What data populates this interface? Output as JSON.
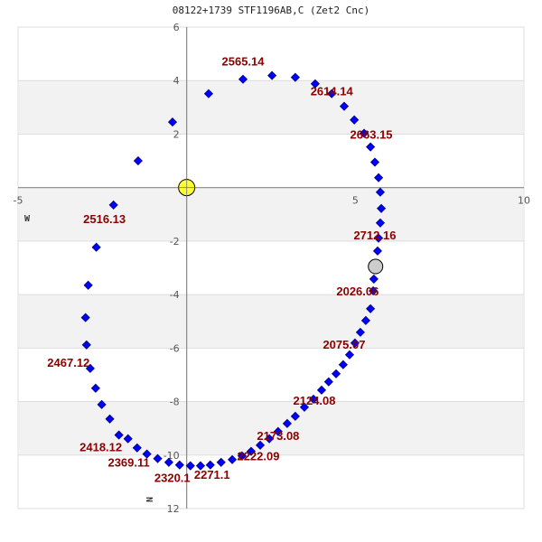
{
  "title": "08122+1739 STF1196AB,C (Zet2 Cnc)",
  "colors": {
    "point": "#0000ff",
    "point_stroke": "#000080",
    "label": "#8b0000",
    "primary_star": "#ffff33",
    "current_position": "#cccccc",
    "band": "#f2f2f2",
    "grid": "#dddddd",
    "axis": "#888888"
  },
  "direction_labels": {
    "west": "W",
    "north": "N"
  },
  "chart_data": {
    "type": "scatter",
    "title": "08122+1739 STF1196AB,C (Zet2 Cnc)",
    "xlabel": "",
    "ylabel": "",
    "xlim": [
      -5,
      10
    ],
    "ylim": [
      12,
      -6
    ],
    "x_ticks": [
      -5,
      5,
      10
    ],
    "y_ticks": [
      6,
      4,
      2,
      -2,
      -4,
      -6,
      -8,
      -10,
      12
    ],
    "y_tick_labels": [
      "6",
      "4",
      "2",
      "-2",
      "-4",
      "-6",
      "-8",
      "-10",
      "12"
    ],
    "grid": true,
    "legend": null,
    "primary": {
      "x": 0,
      "y": 0,
      "name": "primary-star"
    },
    "current_position": {
      "x": 5.6,
      "y": -2.95
    },
    "series": [
      {
        "name": "orbit",
        "points": [
          [
            -0.42,
            2.45
          ],
          [
            -1.44,
            1.0
          ],
          [
            -2.17,
            -0.65
          ],
          [
            -2.68,
            -2.23
          ],
          [
            -2.92,
            -3.65
          ],
          [
            -3.0,
            -4.86
          ],
          [
            -2.97,
            -5.88
          ],
          [
            -2.86,
            -6.76
          ],
          [
            -2.7,
            -7.5
          ],
          [
            -2.52,
            -8.11
          ],
          [
            -2.28,
            -8.65
          ],
          [
            -2.01,
            -9.25
          ],
          [
            -1.74,
            -9.39
          ],
          [
            -1.47,
            -9.73
          ],
          [
            -1.18,
            -9.96
          ],
          [
            -0.86,
            -10.13
          ],
          [
            -0.53,
            -10.27
          ],
          [
            -0.21,
            -10.37
          ],
          [
            0.11,
            -10.4
          ],
          [
            0.41,
            -10.4
          ],
          [
            0.7,
            -10.37
          ],
          [
            1.02,
            -10.27
          ],
          [
            1.35,
            -10.17
          ],
          [
            1.64,
            -10.03
          ],
          [
            1.91,
            -9.86
          ],
          [
            2.18,
            -9.63
          ],
          [
            2.45,
            -9.39
          ],
          [
            2.71,
            -9.12
          ],
          [
            2.98,
            -8.82
          ],
          [
            3.22,
            -8.55
          ],
          [
            3.49,
            -8.21
          ],
          [
            3.76,
            -7.91
          ],
          [
            4.0,
            -7.57
          ],
          [
            4.21,
            -7.26
          ],
          [
            4.43,
            -6.96
          ],
          [
            4.64,
            -6.62
          ],
          [
            4.83,
            -6.25
          ],
          [
            4.99,
            -5.81
          ],
          [
            5.15,
            -5.41
          ],
          [
            5.31,
            -4.97
          ],
          [
            5.45,
            -4.53
          ],
          [
            5.53,
            -3.86
          ],
          [
            5.55,
            -3.42
          ],
          [
            5.66,
            -2.37
          ],
          [
            5.69,
            -1.89
          ],
          [
            5.74,
            -1.32
          ],
          [
            5.77,
            -0.78
          ],
          [
            5.74,
            -0.17
          ],
          [
            5.69,
            0.37
          ],
          [
            5.58,
            0.95
          ],
          [
            5.45,
            1.52
          ],
          [
            5.26,
            2.03
          ],
          [
            4.97,
            2.53
          ],
          [
            4.67,
            3.04
          ],
          [
            4.3,
            3.51
          ],
          [
            3.81,
            3.88
          ],
          [
            3.22,
            4.12
          ],
          [
            2.53,
            4.19
          ],
          [
            1.67,
            4.05
          ],
          [
            0.65,
            3.51
          ]
        ]
      }
    ],
    "annotations": [
      {
        "text": "2565.14",
        "x": 1.67,
        "y": 4.05
      },
      {
        "text": "2614.14",
        "x": 4.3,
        "y": 3.51
      },
      {
        "text": "2663.15",
        "x": 5.26,
        "y": 2.03
      },
      {
        "text": "2712.16",
        "x": 5.74,
        "y": -1.32
      },
      {
        "text": "2026.06",
        "x": 5.55,
        "y": -3.42
      },
      {
        "text": "2075.07",
        "x": 4.99,
        "y": -5.41
      },
      {
        "text": "2124.08",
        "x": 4.0,
        "y": -7.57
      },
      {
        "text": "2173.08",
        "x": 2.98,
        "y": -8.82
      },
      {
        "text": "2222.09",
        "x": 1.91,
        "y": -9.86
      },
      {
        "text": "2271.1",
        "x": 1.02,
        "y": -10.27
      },
      {
        "text": "2320.1",
        "x": 0.11,
        "y": -10.4
      },
      {
        "text": "2369.11",
        "x": -1.18,
        "y": -9.96
      },
      {
        "text": "2418.12",
        "x": -2.01,
        "y": -9.25
      },
      {
        "text": "2467.12",
        "x": -2.97,
        "y": -5.88
      },
      {
        "text": "2516.13",
        "x": -2.17,
        "y": -0.65
      }
    ]
  }
}
